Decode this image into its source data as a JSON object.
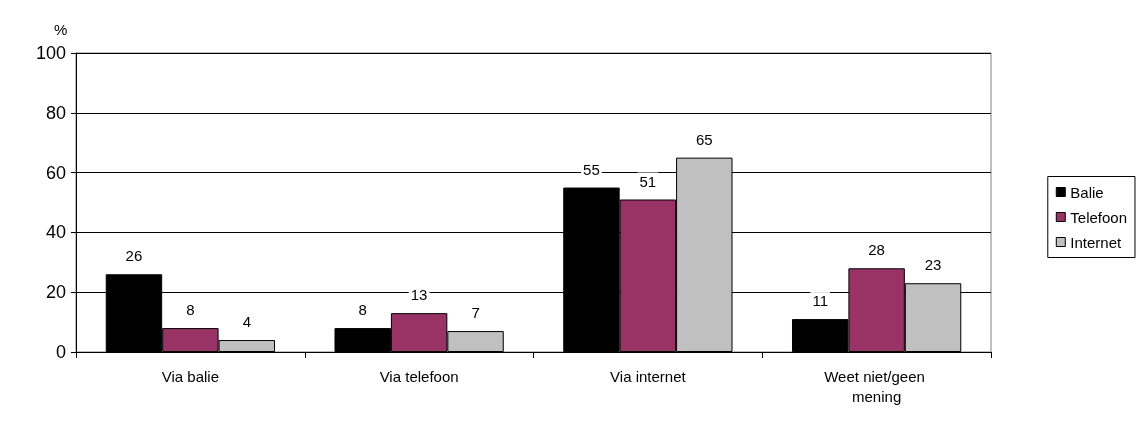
{
  "chart_data": {
    "type": "bar",
    "ylabel": "%",
    "categories": [
      "Via balie",
      "Via telefoon",
      "Via internet",
      "Weet niet/geen mening"
    ],
    "series": [
      {
        "name": "Balie",
        "color": "#000000",
        "values": [
          26,
          8,
          55,
          11
        ]
      },
      {
        "name": "Telefoon",
        "color": "#993366",
        "values": [
          8,
          13,
          51,
          28
        ]
      },
      {
        "name": "Internet",
        "color": "#c0c0c0",
        "values": [
          4,
          7,
          65,
          23
        ]
      }
    ],
    "ylim": [
      0,
      100
    ],
    "yticks": [
      0,
      20,
      40,
      60,
      80,
      100
    ],
    "grid": "y",
    "legend": "right",
    "data_labels": true
  }
}
